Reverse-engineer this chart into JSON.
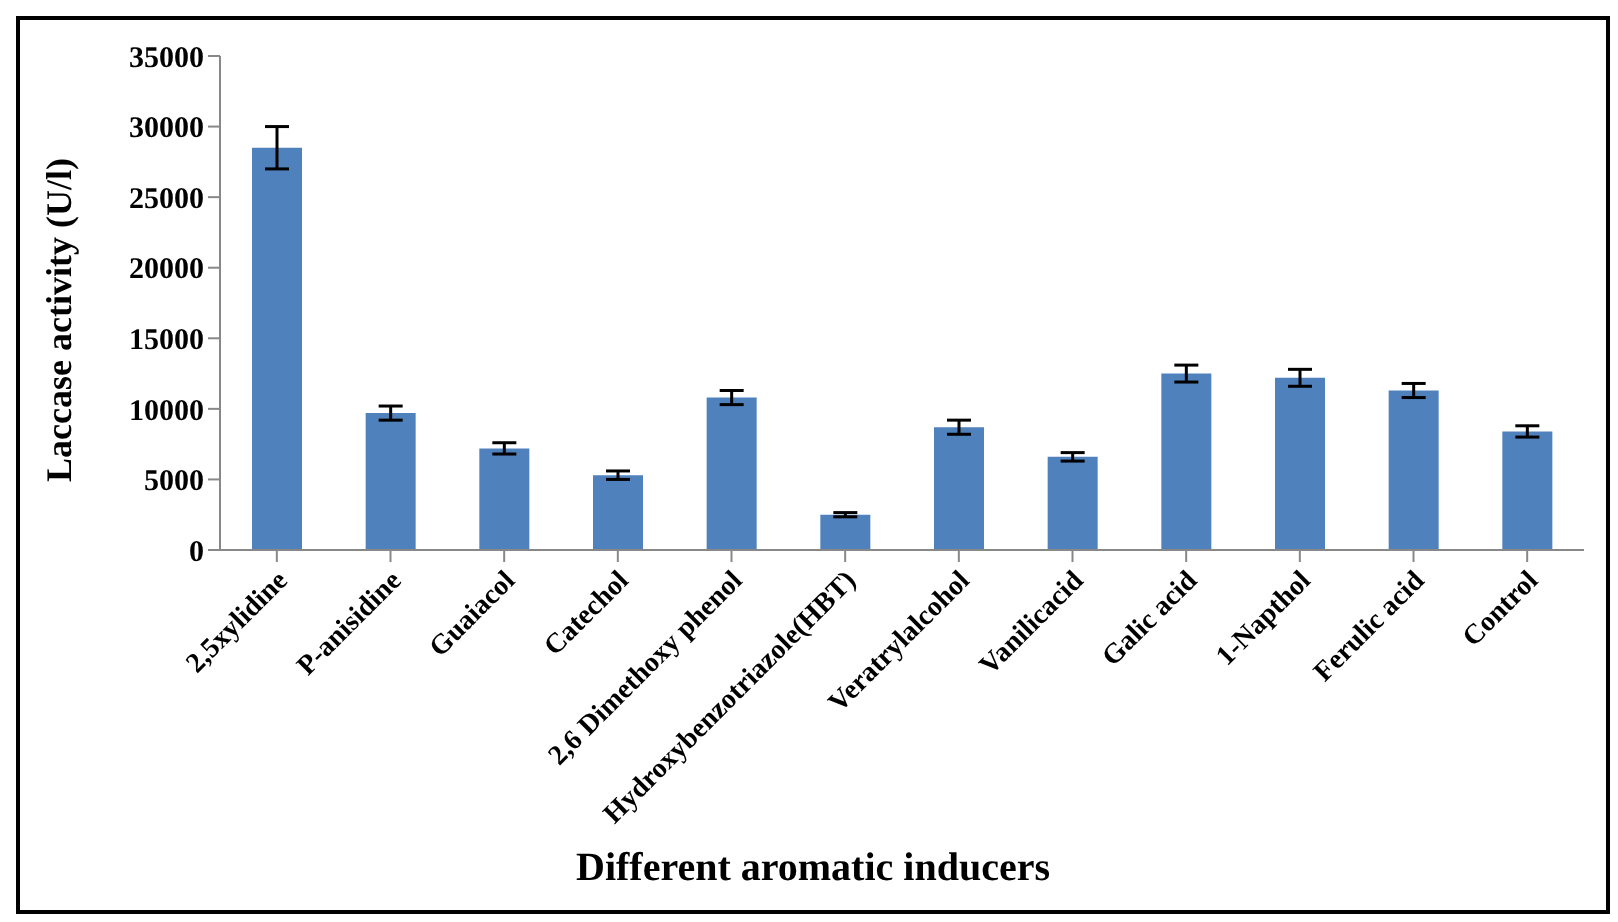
{
  "chart_data": {
    "type": "bar",
    "xlabel": "Different aromatic inducers",
    "ylabel": "Laccase activity (U/l)",
    "categories": [
      "2,5xylidine",
      "P-anisidine",
      "Guaiacol",
      "Catechol",
      "2,6 Dimethoxy phenol",
      "Hydroxybenzotriazole(HBT)",
      "Veratrylalcohol",
      "Vanilicacid",
      "Galic acid",
      "1-Napthol",
      "Ferulic acid",
      "Control"
    ],
    "values": [
      28500,
      9700,
      7200,
      5300,
      10800,
      2500,
      8700,
      6600,
      12500,
      12200,
      11300,
      8400
    ],
    "errors": [
      1500,
      500,
      400,
      300,
      500,
      150,
      500,
      300,
      600,
      600,
      500,
      400
    ],
    "color": "#4f81bd",
    "ylim": [
      0,
      35000
    ],
    "yticks": [
      0,
      5000,
      10000,
      15000,
      20000,
      25000,
      30000,
      35000
    ],
    "grid": false,
    "legend": false
  }
}
